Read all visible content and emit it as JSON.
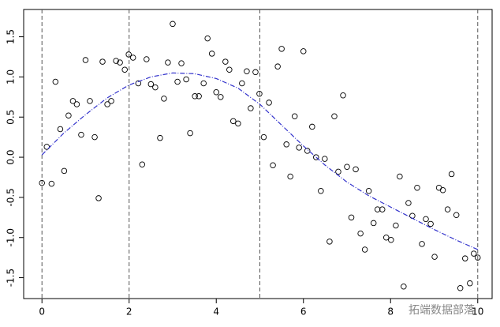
{
  "chart_data": {
    "type": "scatter",
    "x": [
      0,
      0.11,
      0.22,
      0.31,
      0.42,
      0.51,
      0.61,
      0.71,
      0.8,
      0.9,
      1.0,
      1.1,
      1.21,
      1.3,
      1.39,
      1.5,
      1.59,
      1.7,
      1.79,
      1.9,
      1.99,
      2.09,
      2.21,
      2.3,
      2.4,
      2.5,
      2.6,
      2.71,
      2.8,
      2.89,
      3.0,
      3.11,
      3.2,
      3.31,
      3.4,
      3.51,
      3.6,
      3.71,
      3.8,
      3.9,
      4.0,
      4.1,
      4.21,
      4.3,
      4.39,
      4.5,
      4.59,
      4.7,
      4.79,
      4.9,
      4.99,
      5.09,
      5.21,
      5.3,
      5.41,
      5.5,
      5.61,
      5.7,
      5.8,
      5.9,
      6.0,
      6.09,
      6.2,
      6.29,
      6.4,
      6.49,
      6.6,
      6.71,
      6.8,
      6.91,
      7.0,
      7.1,
      7.2,
      7.31,
      7.41,
      7.5,
      7.61,
      7.7,
      7.81,
      7.9,
      8.01,
      8.12,
      8.21,
      8.3,
      8.41,
      8.5,
      8.61,
      8.72,
      8.81,
      8.92,
      9.01,
      9.11,
      9.2,
      9.31,
      9.4,
      9.51,
      9.6,
      9.71,
      9.82,
      9.91,
      10.0
    ],
    "y": [
      -0.32,
      0.13,
      -0.33,
      0.94,
      0.35,
      -0.17,
      0.52,
      0.7,
      0.66,
      0.28,
      1.21,
      0.7,
      0.25,
      -0.51,
      1.19,
      0.66,
      0.7,
      1.2,
      1.18,
      1.09,
      1.28,
      1.24,
      0.92,
      -0.09,
      1.22,
      0.91,
      0.87,
      0.24,
      0.73,
      1.18,
      1.66,
      0.94,
      1.17,
      0.97,
      0.3,
      0.76,
      0.76,
      0.92,
      1.48,
      1.29,
      0.81,
      0.75,
      1.19,
      1.09,
      0.45,
      0.42,
      0.92,
      1.07,
      0.61,
      1.06,
      0.79,
      0.25,
      0.68,
      -0.1,
      1.13,
      1.35,
      0.16,
      -0.24,
      0.51,
      0.12,
      1.32,
      0.08,
      0.38,
      0,
      -0.42,
      -0.02,
      -1.05,
      0.51,
      -0.18,
      0.77,
      -0.12,
      -0.75,
      -0.15,
      -0.95,
      -1.15,
      -0.42,
      -0.82,
      -0.65,
      -0.65,
      -1.0,
      -1.03,
      -0.85,
      -0.24,
      -1.61,
      -0.57,
      -0.73,
      -0.38,
      -1.08,
      -0.77,
      -0.83,
      -1.24,
      -0.38,
      -0.41,
      -0.65,
      -0.21,
      -0.72,
      -1.63,
      -1.26,
      -1.57,
      -1.2,
      -1.25
    ],
    "point_color": "#000000",
    "curve": {
      "x": [
        0,
        0.5,
        1,
        1.5,
        2,
        2.5,
        3,
        3.5,
        4,
        4.5,
        5,
        5.5,
        6,
        6.5,
        7,
        7.5,
        8,
        8.5,
        9,
        9.5,
        10
      ],
      "y": [
        0.03,
        0.3,
        0.53,
        0.74,
        0.9,
        1.0,
        1.05,
        1.04,
        0.98,
        0.86,
        0.66,
        0.4,
        0.14,
        -0.1,
        -0.31,
        -0.48,
        -0.62,
        -0.76,
        -0.9,
        -1.03,
        -1.15
      ],
      "color": "#3333cc"
    },
    "vlines": [
      0,
      2,
      5,
      10
    ],
    "xlim": [
      -0.42,
      10.33
    ],
    "ylim": [
      -1.76,
      1.84
    ],
    "xticks": [
      0,
      2,
      4,
      6,
      8,
      10
    ],
    "yticks": [
      {
        "value": -1.5,
        "label": "-1.5"
      },
      {
        "value": -1,
        "label": "-1.0"
      },
      {
        "value": -0.5,
        "label": "-0.5"
      },
      {
        "value": 0,
        "label": "0.0"
      },
      {
        "value": 0.5,
        "label": "0.5"
      },
      {
        "value": 1,
        "label": "1.0"
      },
      {
        "value": 1.5,
        "label": "1.5"
      }
    ],
    "watermark": "拓端数据部落"
  }
}
